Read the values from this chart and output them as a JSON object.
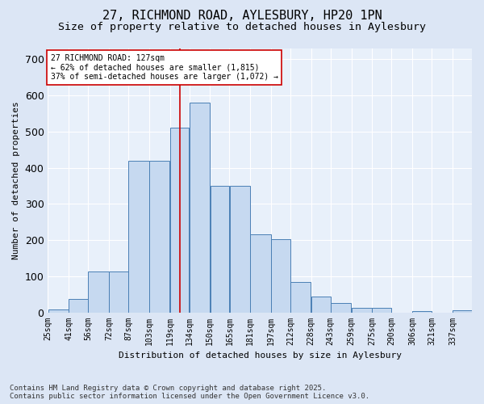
{
  "title_line1": "27, RICHMOND ROAD, AYLESBURY, HP20 1PN",
  "title_line2": "Size of property relative to detached houses in Aylesbury",
  "xlabel": "Distribution of detached houses by size in Aylesbury",
  "ylabel": "Number of detached properties",
  "footnote_line1": "Contains HM Land Registry data © Crown copyright and database right 2025.",
  "footnote_line2": "Contains public sector information licensed under the Open Government Licence v3.0.",
  "bin_edges": [
    25,
    41,
    56,
    72,
    87,
    103,
    119,
    134,
    150,
    165,
    181,
    197,
    212,
    228,
    243,
    259,
    275,
    290,
    306,
    321,
    337,
    352
  ],
  "bin_labels": [
    "25sqm",
    "41sqm",
    "56sqm",
    "72sqm",
    "87sqm",
    "103sqm",
    "119sqm",
    "134sqm",
    "150sqm",
    "165sqm",
    "181sqm",
    "197sqm",
    "212sqm",
    "228sqm",
    "243sqm",
    "259sqm",
    "275sqm",
    "290sqm",
    "306sqm",
    "321sqm",
    "337sqm"
  ],
  "bar_heights": [
    8,
    38,
    113,
    113,
    420,
    420,
    512,
    580,
    350,
    350,
    215,
    203,
    85,
    43,
    25,
    12,
    13,
    0,
    4,
    0,
    5
  ],
  "bar_fill_color": "#c6d9f0",
  "bar_edge_color": "#4a7fb5",
  "vline_x": 127,
  "vline_color": "#cc0000",
  "annotation_text": "27 RICHMOND ROAD: 127sqm\n← 62% of detached houses are smaller (1,815)\n37% of semi-detached houses are larger (1,072) →",
  "annotation_box_color": "#cc0000",
  "yticks": [
    0,
    100,
    200,
    300,
    400,
    500,
    600,
    700
  ],
  "ylim": [
    0,
    730
  ],
  "bg_color": "#dce6f5",
  "plot_bg_color": "#e8f0fa",
  "grid_color": "#ffffff",
  "title_fontsize": 11,
  "subtitle_fontsize": 9.5,
  "footnote_fontsize": 6.5,
  "axis_fontsize": 8,
  "tick_fontsize": 7
}
